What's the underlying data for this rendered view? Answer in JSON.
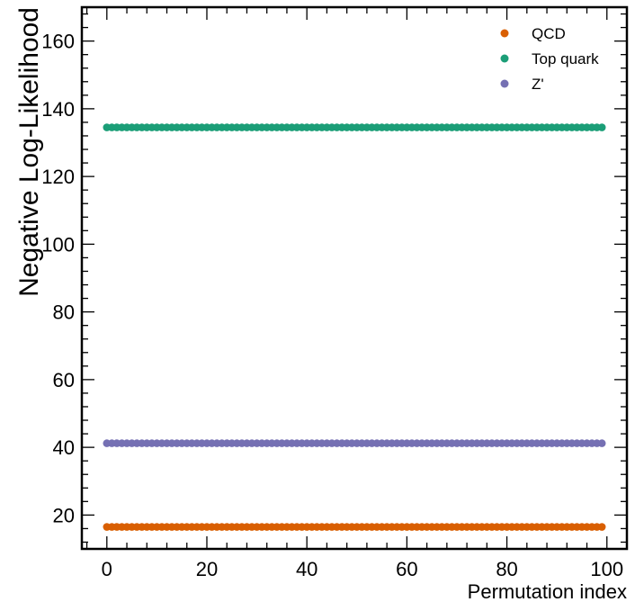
{
  "chart_data": {
    "type": "scatter",
    "title": "",
    "xlabel": "Permutation index",
    "ylabel": "Negative Log-Likelihood",
    "xlim": [
      -5,
      104
    ],
    "ylim": [
      10,
      170
    ],
    "xticks": [
      0,
      20,
      40,
      60,
      80,
      100
    ],
    "yticks": [
      20,
      40,
      60,
      80,
      100,
      120,
      140,
      160
    ],
    "grid": false,
    "legend": "top-right",
    "x": {
      "start": 0,
      "end": 99,
      "step": 1
    },
    "series": [
      {
        "name": "QCD",
        "color": "#d95f02",
        "value": 16.5
      },
      {
        "name": "Top quark",
        "color": "#1b9e77",
        "value": 134.5
      },
      {
        "name": "Z'",
        "color": "#7570b3",
        "value": 41.2
      }
    ]
  }
}
